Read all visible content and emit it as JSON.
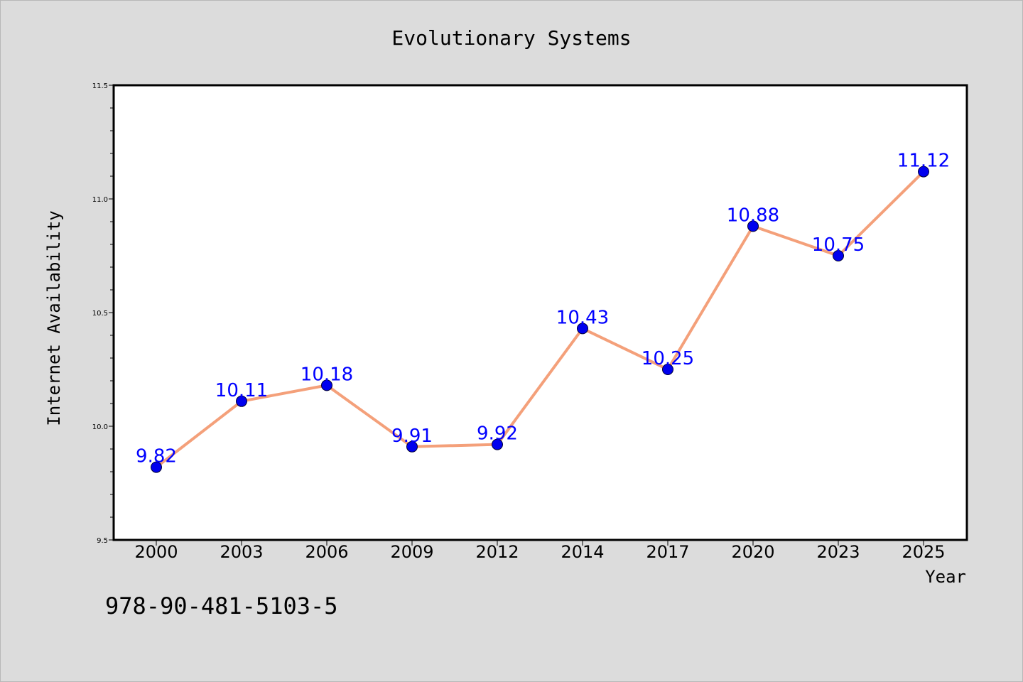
{
  "chart_data": {
    "type": "line",
    "title": "Evolutionary Systems",
    "xlabel": "Year",
    "ylabel": "Internet Availability",
    "categories": [
      "2000",
      "2003",
      "2006",
      "2009",
      "2012",
      "2014",
      "2017",
      "2020",
      "2023",
      "2025"
    ],
    "series": [
      {
        "values": [
          9.82,
          10.11,
          10.18,
          9.91,
          9.92,
          10.43,
          10.25,
          10.88,
          10.75,
          11.12
        ],
        "line_color": "#f4a07a",
        "marker_color": "#0000ee"
      }
    ],
    "data_labels": [
      "9.82",
      "10.11",
      "10.18",
      "9.91",
      "9.92",
      "10.43",
      "10.25",
      "10.88",
      "10.75",
      "11.12"
    ],
    "ylim": [
      9.5,
      11.5
    ],
    "y_ticks": [
      "9.5",
      "10.0",
      "10.5",
      "11.0",
      "11.5"
    ],
    "grid": false,
    "legend": "none"
  },
  "footer": {
    "isbn": "978-90-481-5103-5"
  },
  "colors": {
    "background": "#dcdcdc",
    "plot_background": "#ffffff",
    "data_label": "#0000ff"
  }
}
